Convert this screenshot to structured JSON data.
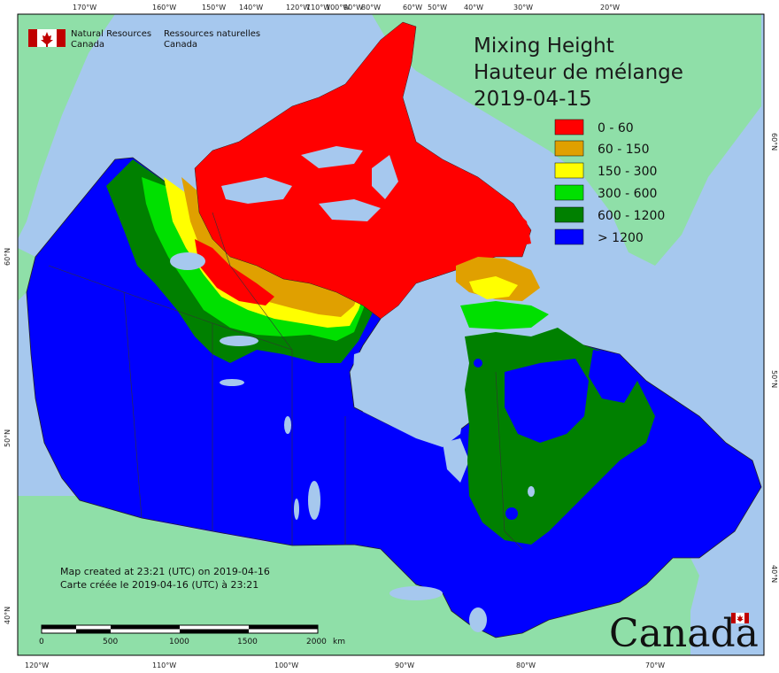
{
  "title": {
    "line1": "Mixing Height",
    "line2": "Hauteur de mélange",
    "date": "2019-04-15"
  },
  "agency": {
    "name_en_line1": "Natural Resources",
    "name_en_line2": "Canada",
    "name_fr_line1": "Ressources naturelles",
    "name_fr_line2": "Canada"
  },
  "legend": [
    {
      "label": "0 - 60",
      "color": "#ff0000"
    },
    {
      "label": "60 - 150",
      "color": "#e0a000"
    },
    {
      "label": "150 - 300",
      "color": "#ffff00"
    },
    {
      "label": "300 - 600",
      "color": "#00e000"
    },
    {
      "label": "600 - 1200",
      "color": "#008000"
    },
    {
      "label": "> 1200",
      "color": "#0000ff"
    }
  ],
  "credits": {
    "line_en": "Map created at 23:21 (UTC) on 2019-04-16",
    "line_fr": "Carte créée le 2019-04-16 (UTC) à 23:21"
  },
  "wordmark": "Canada",
  "scale_bar": {
    "labels": [
      "0",
      "500",
      "1000",
      "1500",
      "2000"
    ],
    "unit": "km"
  },
  "graticule": {
    "top_labels": [
      "170°W",
      "160°W",
      "150°W",
      "140°W",
      "120°W",
      "110°W",
      "100°W",
      "90°W",
      "80°W",
      "60°W",
      "50°W",
      "40°W",
      "30°W",
      "20°W"
    ],
    "bottom_labels": [
      "120°W",
      "110°W",
      "100°W",
      "90°W",
      "80°W",
      "70°W"
    ],
    "left_labels": [
      "60°N",
      "50°N",
      "40°N"
    ],
    "right_labels": [
      "60°N",
      "50°N",
      "40°N"
    ]
  },
  "colors": {
    "ocean": "#a6c8ee",
    "foreign_land": "#8fdfa8",
    "canada_outline": "#222222",
    "lake": "#a6c8ee"
  }
}
